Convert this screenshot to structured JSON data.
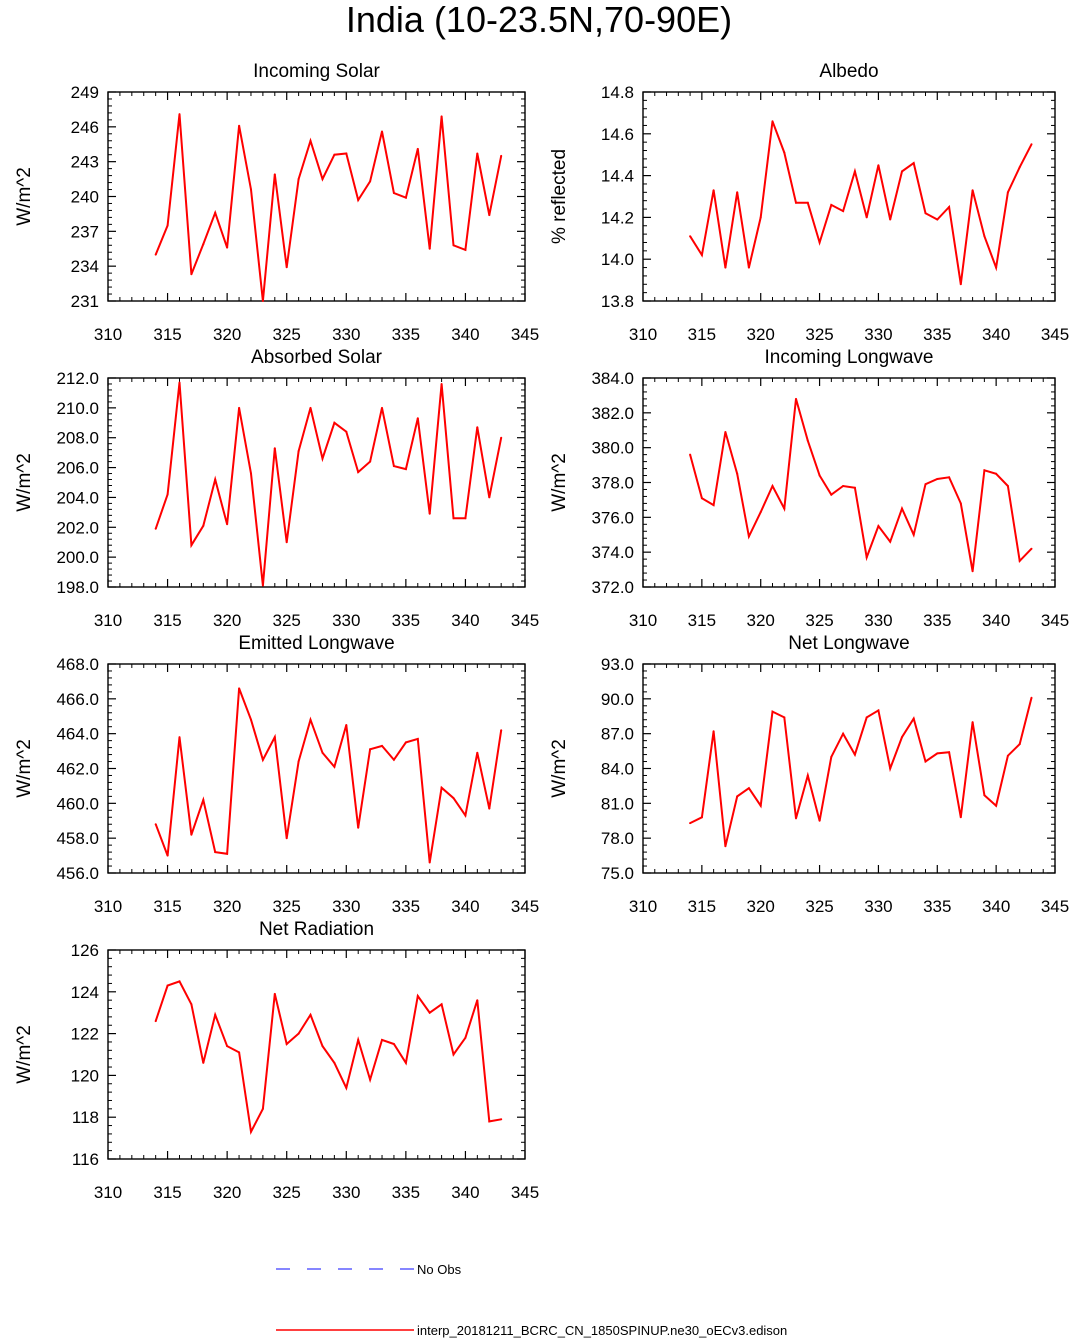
{
  "title": "India (10-23.5N,70-90E)",
  "colors": {
    "model": "#ff0000",
    "obs": "#3f3fff",
    "axis": "#000000"
  },
  "legend": {
    "obs_label": "No Obs",
    "model_label": "interp_20181211_BCRC_CN_1850SPINUP.ne30_oECv3.edison"
  },
  "chart_data": [
    {
      "type": "line",
      "title": "Incoming Solar",
      "xlabel": "",
      "ylabel": "W/m^2",
      "xlim": [
        310,
        345
      ],
      "ylim": [
        231,
        249
      ],
      "xticks": [
        310,
        315,
        320,
        325,
        330,
        335,
        340,
        345
      ],
      "yticks": [
        "231",
        "234",
        "237",
        "240",
        "243",
        "246",
        "249"
      ],
      "x": [
        314,
        315,
        316,
        317,
        318,
        319,
        320,
        321,
        322,
        323,
        324,
        325,
        326,
        327,
        328,
        329,
        330,
        331,
        332,
        333,
        334,
        335,
        336,
        337,
        338,
        339,
        340,
        341,
        342,
        343
      ],
      "values": [
        235.0,
        237.5,
        247.1,
        233.3,
        235.9,
        238.6,
        235.6,
        246.1,
        240.6,
        231.0,
        241.9,
        233.9,
        241.5,
        244.8,
        241.5,
        243.6,
        243.7,
        239.7,
        241.3,
        245.6,
        240.3,
        239.9,
        244.1,
        235.5,
        246.9,
        235.8,
        235.4,
        243.7,
        238.4,
        243.5
      ]
    },
    {
      "type": "line",
      "title": "Albedo",
      "xlabel": "",
      "ylabel": "% reflected",
      "xlim": [
        310,
        345
      ],
      "ylim": [
        13.8,
        14.8
      ],
      "xticks": [
        310,
        315,
        320,
        325,
        330,
        335,
        340,
        345
      ],
      "yticks": [
        "13.8",
        "14.0",
        "14.2",
        "14.4",
        "14.6",
        "14.8"
      ],
      "x": [
        314,
        315,
        316,
        317,
        318,
        319,
        320,
        321,
        322,
        323,
        324,
        325,
        326,
        327,
        328,
        329,
        330,
        331,
        332,
        333,
        334,
        335,
        336,
        337,
        338,
        339,
        340,
        341,
        342,
        343
      ],
      "values": [
        14.11,
        14.02,
        14.33,
        13.96,
        14.32,
        13.96,
        14.2,
        14.66,
        14.51,
        14.27,
        14.27,
        14.08,
        14.26,
        14.23,
        14.42,
        14.2,
        14.45,
        14.19,
        14.42,
        14.46,
        14.22,
        14.19,
        14.25,
        13.88,
        14.33,
        14.11,
        13.96,
        14.32,
        14.44,
        14.55
      ]
    },
    {
      "type": "line",
      "title": "Absorbed Solar",
      "xlabel": "",
      "ylabel": "W/m^2",
      "xlim": [
        310,
        345
      ],
      "ylim": [
        198,
        212
      ],
      "xticks": [
        310,
        315,
        320,
        325,
        330,
        335,
        340,
        345
      ],
      "yticks": [
        "198.0",
        "200.0",
        "202.0",
        "204.0",
        "206.0",
        "208.0",
        "210.0",
        "212.0"
      ],
      "x": [
        314,
        315,
        316,
        317,
        318,
        319,
        320,
        321,
        322,
        323,
        324,
        325,
        326,
        327,
        328,
        329,
        330,
        331,
        332,
        333,
        334,
        335,
        336,
        337,
        338,
        339,
        340,
        341,
        342,
        343
      ],
      "values": [
        201.9,
        204.2,
        211.7,
        200.8,
        202.1,
        205.2,
        202.2,
        210.0,
        205.6,
        198.1,
        207.3,
        201.0,
        207.1,
        210.0,
        206.6,
        209.0,
        208.4,
        205.7,
        206.4,
        210.0,
        206.1,
        205.9,
        209.3,
        202.9,
        211.6,
        202.6,
        202.6,
        208.7,
        204.0,
        208.0
      ]
    },
    {
      "type": "line",
      "title": "Incoming Longwave",
      "xlabel": "",
      "ylabel": "W/m^2",
      "xlim": [
        310,
        345
      ],
      "ylim": [
        372,
        384
      ],
      "xticks": [
        310,
        315,
        320,
        325,
        330,
        335,
        340,
        345
      ],
      "yticks": [
        "372.0",
        "374.0",
        "376.0",
        "378.0",
        "380.0",
        "382.0",
        "384.0"
      ],
      "x": [
        314,
        315,
        316,
        317,
        318,
        319,
        320,
        321,
        322,
        323,
        324,
        325,
        326,
        327,
        328,
        329,
        330,
        331,
        332,
        333,
        334,
        335,
        336,
        337,
        338,
        339,
        340,
        341,
        342,
        343
      ],
      "values": [
        379.6,
        377.1,
        376.7,
        380.9,
        378.5,
        374.9,
        376.3,
        377.8,
        376.5,
        382.8,
        380.4,
        378.4,
        377.3,
        377.8,
        377.7,
        373.7,
        375.5,
        374.6,
        376.5,
        375.0,
        377.9,
        378.2,
        378.3,
        376.8,
        372.9,
        378.7,
        378.5,
        377.8,
        373.5,
        374.2
      ]
    },
    {
      "type": "line",
      "title": "Emitted Longwave",
      "xlabel": "",
      "ylabel": "W/m^2",
      "xlim": [
        310,
        345
      ],
      "ylim": [
        456,
        468
      ],
      "xticks": [
        310,
        315,
        320,
        325,
        330,
        335,
        340,
        345
      ],
      "yticks": [
        "456.0",
        "458.0",
        "460.0",
        "462.0",
        "464.0",
        "466.0",
        "468.0"
      ],
      "x": [
        314,
        315,
        316,
        317,
        318,
        319,
        320,
        321,
        322,
        323,
        324,
        325,
        326,
        327,
        328,
        329,
        330,
        331,
        332,
        333,
        334,
        335,
        336,
        337,
        338,
        339,
        340,
        341,
        342,
        343
      ],
      "values": [
        458.8,
        457.0,
        463.8,
        458.2,
        460.2,
        457.2,
        457.1,
        466.6,
        464.8,
        462.5,
        463.8,
        458.0,
        462.4,
        464.8,
        462.9,
        462.1,
        464.5,
        458.6,
        463.1,
        463.3,
        462.5,
        463.5,
        463.7,
        456.6,
        460.9,
        460.3,
        459.3,
        462.9,
        459.7,
        464.2
      ]
    },
    {
      "type": "line",
      "title": "Net Longwave",
      "xlabel": "",
      "ylabel": "W/m^2",
      "xlim": [
        310,
        345
      ],
      "ylim": [
        75,
        93
      ],
      "xticks": [
        310,
        315,
        320,
        325,
        330,
        335,
        340,
        345
      ],
      "yticks": [
        "75.0",
        "78.0",
        "81.0",
        "84.0",
        "87.0",
        "90.0",
        "93.0"
      ],
      "x": [
        314,
        315,
        316,
        317,
        318,
        319,
        320,
        321,
        322,
        323,
        324,
        325,
        326,
        327,
        328,
        329,
        330,
        331,
        332,
        333,
        334,
        335,
        336,
        337,
        338,
        339,
        340,
        341,
        342,
        343
      ],
      "values": [
        79.3,
        79.8,
        87.2,
        77.3,
        81.6,
        82.3,
        80.8,
        88.9,
        88.4,
        79.7,
        83.4,
        79.5,
        85.0,
        87.0,
        85.2,
        88.4,
        89.0,
        84.0,
        86.7,
        88.3,
        84.6,
        85.3,
        85.4,
        79.8,
        88.0,
        81.7,
        80.8,
        85.1,
        86.1,
        90.1
      ]
    },
    {
      "type": "line",
      "title": "Net Radiation",
      "xlabel": "",
      "ylabel": "W/m^2",
      "xlim": [
        310,
        345
      ],
      "ylim": [
        116,
        126
      ],
      "xticks": [
        310,
        315,
        320,
        325,
        330,
        335,
        340,
        345
      ],
      "yticks": [
        "116",
        "118",
        "120",
        "122",
        "124",
        "126"
      ],
      "x": [
        314,
        315,
        316,
        317,
        318,
        319,
        320,
        321,
        322,
        323,
        324,
        325,
        326,
        327,
        328,
        329,
        330,
        331,
        332,
        333,
        334,
        335,
        336,
        337,
        338,
        339,
        340,
        341,
        342,
        343
      ],
      "values": [
        122.6,
        124.3,
        124.5,
        123.4,
        120.6,
        122.9,
        121.4,
        121.1,
        117.3,
        118.4,
        123.9,
        121.5,
        122.0,
        122.9,
        121.4,
        120.6,
        119.4,
        121.7,
        119.8,
        121.7,
        121.5,
        120.6,
        123.8,
        123.0,
        123.4,
        121.0,
        121.8,
        123.6,
        117.8,
        117.9
      ]
    }
  ]
}
